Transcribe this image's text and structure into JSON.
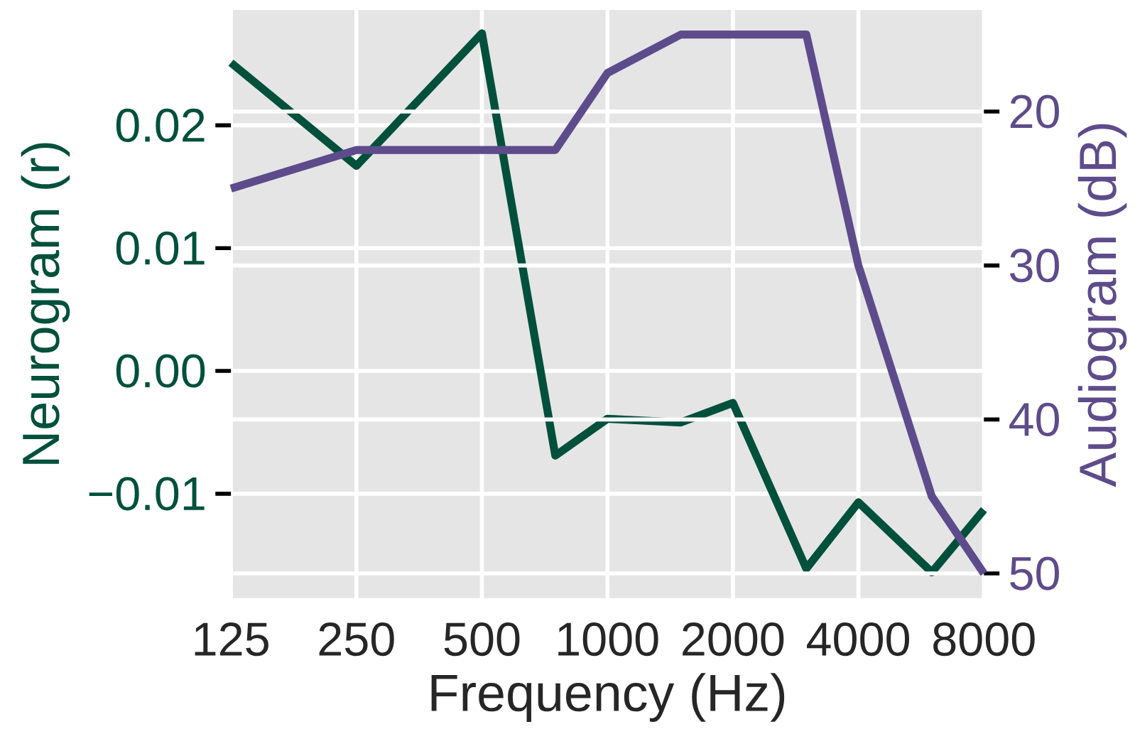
{
  "chart_data": {
    "type": "line",
    "xlabel": "Frequency (Hz)",
    "ylabel": "Neurogram (r)",
    "y2label": "Audiogram (dB)",
    "log": "x",
    "grid": true,
    "marker": "none",
    "line_style": "solid",
    "xlim": [
      125,
      8000
    ],
    "xticks": [
      125,
      250,
      500,
      1000,
      2000,
      4000,
      8000
    ],
    "ylim": [
      -0.0185,
      0.0294
    ],
    "yticks": [
      {
        "value": -0.01,
        "label": "−0.01"
      },
      {
        "value": 0,
        "label": "0.00"
      },
      {
        "value": 0.01,
        "label": "0.01"
      },
      {
        "value": 0.02,
        "label": "0.02"
      }
    ],
    "y2lim": [
      51.6,
      13.4
    ],
    "y2ticks": [
      20,
      30,
      40,
      50
    ],
    "series": [
      {
        "color": "#00503c",
        "x": [
          125,
          250,
          500,
          750,
          1000,
          1500,
          2000,
          3000,
          4000,
          6000,
          8000
        ],
        "values": [
          0.0251,
          0.0167,
          0.0275,
          -0.0069,
          -0.0039,
          -0.0042,
          -0.0026,
          -0.0161,
          -0.0107,
          -0.0164,
          -0.0113
        ]
      },
      {
        "color": "#5e4b8b",
        "axis": "y2",
        "x": [
          125,
          250,
          500,
          750,
          1000,
          1500,
          2000,
          3000,
          4000,
          6000,
          8000
        ],
        "values": [
          25.0,
          22.5,
          22.5,
          22.5,
          17.5,
          15.0,
          15.0,
          15.0,
          30.0,
          45.0,
          50.0
        ]
      }
    ]
  }
}
